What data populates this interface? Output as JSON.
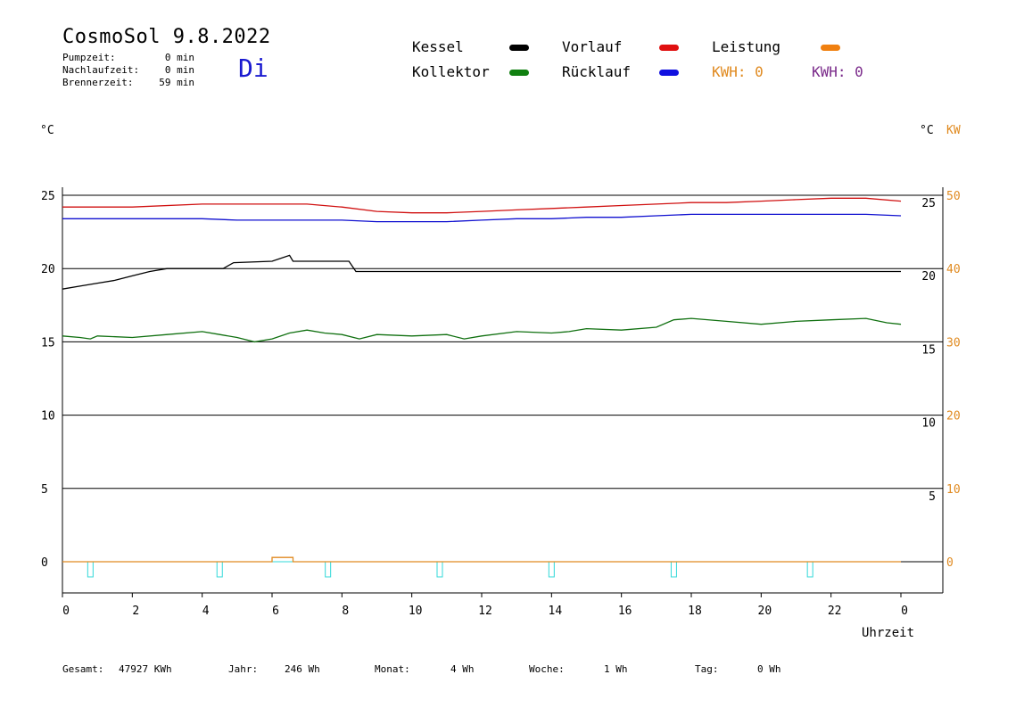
{
  "header": {
    "title": "CosmoSol 9.8.2022",
    "day": "Di",
    "stats": [
      {
        "label": "Pumpzeit:",
        "value": "0 min"
      },
      {
        "label": "Nachlaufzeit:",
        "value": "0 min"
      },
      {
        "label": "Brennerzeit:",
        "value": "59 min"
      }
    ]
  },
  "legend": {
    "items": [
      {
        "label": "Kessel",
        "color": "#000000"
      },
      {
        "label": "Vorlauf",
        "color": "#e01010"
      },
      {
        "label": "Leistung",
        "color": "#f08010"
      },
      {
        "label": "Kollektor",
        "color": "#108010"
      },
      {
        "label": "Rücklauf",
        "color": "#1010e0"
      }
    ],
    "kwh_orange": "KWH: 0",
    "kwh_purple": "KWH: 0",
    "orange_color": "#e08a20",
    "purple_color": "#7a2a8a"
  },
  "axes": {
    "left_unit": "°C",
    "right_unit_temp": "°C",
    "right_unit_kw": "KW",
    "xlabel": "Uhrzeit"
  },
  "footer": [
    {
      "label": "Gesamt:",
      "value": "47927 KWh"
    },
    {
      "label": "Jahr:",
      "value": "246 Wh"
    },
    {
      "label": "Monat:",
      "value": "4 Wh"
    },
    {
      "label": "Woche:",
      "value": "1 Wh"
    },
    {
      "label": "Tag:",
      "value": "0 Wh"
    }
  ],
  "chart_data": {
    "type": "line",
    "xlabel": "Uhrzeit",
    "x_ticks": [
      "0",
      "2",
      "4",
      "6",
      "8",
      "10",
      "12",
      "14",
      "16",
      "18",
      "20",
      "22",
      "0"
    ],
    "xlim": [
      0,
      24
    ],
    "ylim_left": [
      -2,
      26
    ],
    "y_ticks_left": [
      0,
      5,
      10,
      15,
      20,
      25
    ],
    "y_ticks_right_temp": [
      5,
      10,
      15,
      20,
      25
    ],
    "y_ticks_right_kw": [
      0,
      10,
      20,
      30,
      40,
      50
    ],
    "gridlines": [
      5,
      10,
      15,
      20,
      25
    ],
    "series": [
      {
        "name": "Vorlauf",
        "color": "#d01010",
        "points": [
          [
            0,
            24.2
          ],
          [
            2,
            24.2
          ],
          [
            4,
            24.4
          ],
          [
            6,
            24.4
          ],
          [
            7,
            24.4
          ],
          [
            8,
            24.2
          ],
          [
            9,
            23.9
          ],
          [
            10,
            23.8
          ],
          [
            11,
            23.8
          ],
          [
            12,
            23.9
          ],
          [
            13,
            24.0
          ],
          [
            14,
            24.1
          ],
          [
            15,
            24.2
          ],
          [
            16,
            24.3
          ],
          [
            17,
            24.4
          ],
          [
            18,
            24.5
          ],
          [
            19,
            24.5
          ],
          [
            20,
            24.6
          ],
          [
            21,
            24.7
          ],
          [
            22,
            24.8
          ],
          [
            23,
            24.8
          ],
          [
            24,
            24.6
          ]
        ]
      },
      {
        "name": "Rücklauf",
        "color": "#1010d0",
        "points": [
          [
            0,
            23.4
          ],
          [
            2,
            23.4
          ],
          [
            4,
            23.4
          ],
          [
            5,
            23.3
          ],
          [
            6,
            23.3
          ],
          [
            7,
            23.3
          ],
          [
            8,
            23.3
          ],
          [
            9,
            23.2
          ],
          [
            10,
            23.2
          ],
          [
            11,
            23.2
          ],
          [
            12,
            23.3
          ],
          [
            13,
            23.4
          ],
          [
            14,
            23.4
          ],
          [
            15,
            23.5
          ],
          [
            16,
            23.5
          ],
          [
            17,
            23.6
          ],
          [
            18,
            23.7
          ],
          [
            19,
            23.7
          ],
          [
            20,
            23.7
          ],
          [
            21,
            23.7
          ],
          [
            22,
            23.7
          ],
          [
            23,
            23.7
          ],
          [
            24,
            23.6
          ]
        ]
      },
      {
        "name": "Kessel",
        "color": "#000000",
        "points": [
          [
            0,
            18.6
          ],
          [
            0.5,
            18.8
          ],
          [
            1,
            19.0
          ],
          [
            1.5,
            19.2
          ],
          [
            2,
            19.5
          ],
          [
            2.5,
            19.8
          ],
          [
            3,
            20.0
          ],
          [
            4.6,
            20.0
          ],
          [
            4.9,
            20.4
          ],
          [
            6,
            20.5
          ],
          [
            6.5,
            20.9
          ],
          [
            6.6,
            20.5
          ],
          [
            8.2,
            20.5
          ],
          [
            8.4,
            19.8
          ],
          [
            24,
            19.8
          ]
        ]
      },
      {
        "name": "Kollektor",
        "color": "#107010",
        "points": [
          [
            0,
            15.4
          ],
          [
            0.5,
            15.3
          ],
          [
            0.8,
            15.2
          ],
          [
            1,
            15.4
          ],
          [
            2,
            15.3
          ],
          [
            3,
            15.5
          ],
          [
            4,
            15.7
          ],
          [
            4.5,
            15.5
          ],
          [
            5,
            15.3
          ],
          [
            5.5,
            15.0
          ],
          [
            6,
            15.2
          ],
          [
            6.5,
            15.6
          ],
          [
            7,
            15.8
          ],
          [
            7.5,
            15.6
          ],
          [
            8,
            15.5
          ],
          [
            8.5,
            15.2
          ],
          [
            9,
            15.5
          ],
          [
            10,
            15.4
          ],
          [
            11,
            15.5
          ],
          [
            11.5,
            15.2
          ],
          [
            12,
            15.4
          ],
          [
            13,
            15.7
          ],
          [
            14,
            15.6
          ],
          [
            14.5,
            15.7
          ],
          [
            15,
            15.9
          ],
          [
            16,
            15.8
          ],
          [
            17,
            16.0
          ],
          [
            17.5,
            16.5
          ],
          [
            18,
            16.6
          ],
          [
            19,
            16.4
          ],
          [
            20,
            16.2
          ],
          [
            21,
            16.4
          ],
          [
            22,
            16.5
          ],
          [
            23,
            16.6
          ],
          [
            23.6,
            16.3
          ],
          [
            24,
            16.2
          ]
        ]
      },
      {
        "name": "Leistung",
        "color": "#e08a20",
        "points": [
          [
            0,
            0
          ],
          [
            6,
            0
          ],
          [
            6,
            0.1
          ],
          [
            6.6,
            0.1
          ],
          [
            6.6,
            0
          ],
          [
            24,
            0
          ]
        ]
      }
    ],
    "pump_markers_x": [
      0.8,
      4.5,
      7.6,
      10.8,
      14.0,
      17.5,
      21.4
    ]
  }
}
